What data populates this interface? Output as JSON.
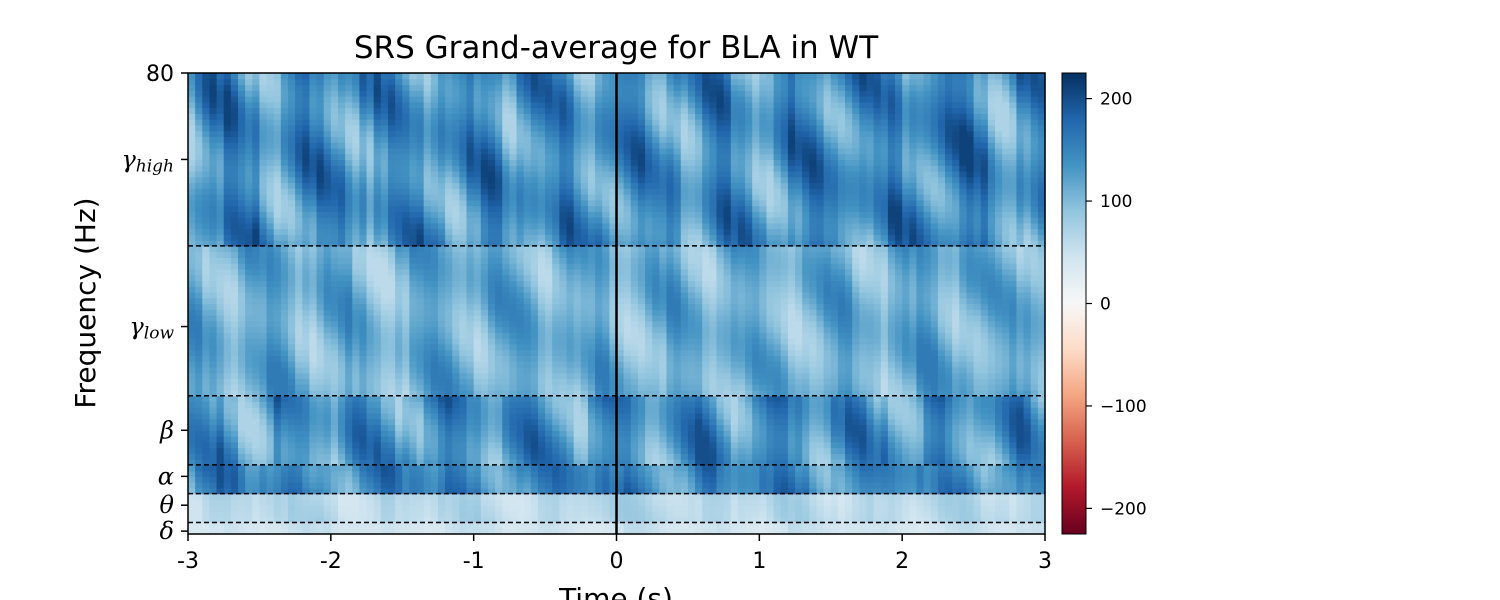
{
  "chart_data": {
    "type": "heatmap",
    "title": "SRS Grand-average for BLA in WT",
    "xlabel": "Time (s)",
    "ylabel": "Frequency (Hz)",
    "xlim": [
      -3,
      3
    ],
    "ylim": [
      0,
      80
    ],
    "colormap": "RdBu",
    "x_ticks": [
      -3,
      -2,
      -1,
      0,
      1,
      2,
      3
    ],
    "x_tick_labels": [
      "-3",
      "-2",
      "-1",
      "0",
      "1",
      "2",
      "3"
    ],
    "y_top_tick_label": "80",
    "band_ticks": [
      {
        "greek": "γ",
        "sub": "high",
        "freq": 65
      },
      {
        "greek": "γ",
        "sub": "low",
        "freq": 36
      },
      {
        "greek": "β",
        "sub": "",
        "freq": 18
      },
      {
        "greek": "α",
        "sub": "",
        "freq": 10
      },
      {
        "greek": "θ",
        "sub": "",
        "freq": 5
      },
      {
        "greek": "δ",
        "sub": "",
        "freq": 0.5
      }
    ],
    "band_boundaries_hz": [
      2,
      7,
      12,
      24,
      50
    ],
    "event_time_s": 0,
    "colorbar": {
      "range": [
        -225,
        225
      ],
      "ticks": [
        200,
        100,
        0,
        -100,
        -200
      ],
      "tick_labels": [
        "200",
        "100",
        "0",
        "−100",
        "−200"
      ],
      "colors_low_to_high": [
        "#67001f",
        "#b2182b",
        "#d6604d",
        "#f4a582",
        "#fddbc7",
        "#f7f7f7",
        "#d1e5f0",
        "#92c5de",
        "#4393c3",
        "#2166ac",
        "#053061"
      ]
    },
    "band_value_ranges": [
      {
        "band": "0-2 Hz",
        "min": 30,
        "max": 60
      },
      {
        "band": "2-7 Hz",
        "min": 40,
        "max": 85
      },
      {
        "band": "7-12 Hz",
        "min": 90,
        "max": 200
      },
      {
        "band": "12-24 Hz",
        "min": 70,
        "max": 200
      },
      {
        "band": "24-50 Hz",
        "min": 60,
        "max": 160
      },
      {
        "band": "50-80 Hz",
        "min": 70,
        "max": 210
      }
    ]
  }
}
